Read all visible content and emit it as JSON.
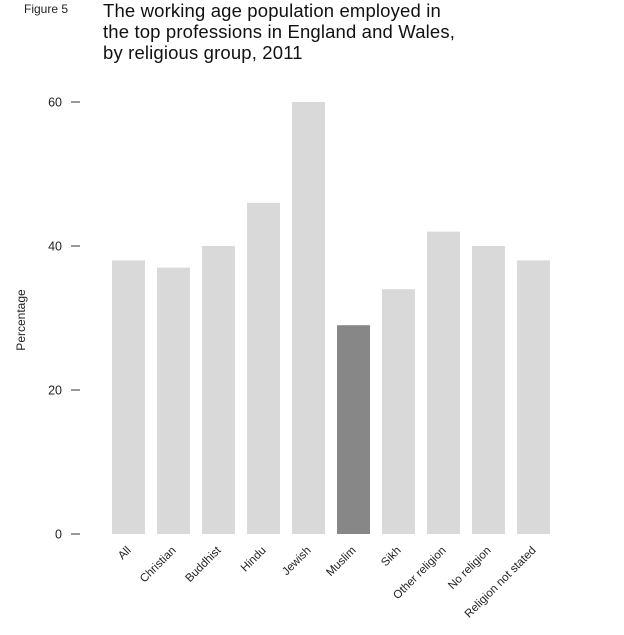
{
  "figure_label": "Figure 5",
  "chart_data": {
    "type": "bar",
    "title_lines": [
      "The working age population employed in",
      "the top professions in England and Wales,",
      "by religious group, 2011"
    ],
    "ylabel": "Percentage",
    "xlabel": "",
    "ylim": [
      0,
      60
    ],
    "yticks": [
      0,
      20,
      40,
      60
    ],
    "grid": false,
    "categories": [
      "All",
      "Christian",
      "Buddhist",
      "Hindu",
      "Jewish",
      "Muslim",
      "Sikh",
      "Other religion",
      "No religion",
      "Religion not stated"
    ],
    "values": [
      38,
      37,
      40,
      46,
      60,
      29,
      34,
      42,
      40,
      38
    ],
    "highlight_category": "Muslim",
    "colors": {
      "bar": "#d9d9d9",
      "highlight": "#878787",
      "axis": "#333333"
    }
  }
}
